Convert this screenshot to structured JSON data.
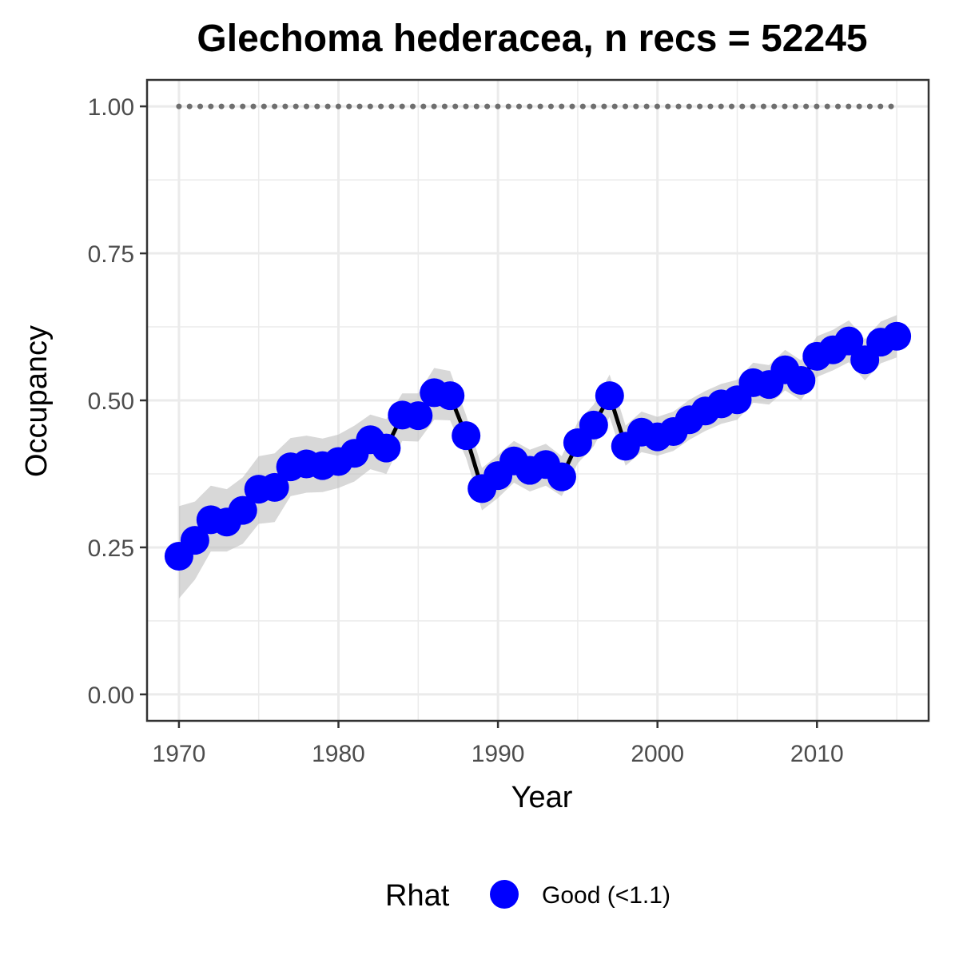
{
  "chart_data": {
    "type": "line",
    "title": "Glechoma hederacea, n recs = 52245",
    "xlabel": "Year",
    "ylabel": "Occupancy",
    "xlim": [
      1968,
      2017
    ],
    "ylim": [
      -0.045,
      1.045
    ],
    "x_ticks": [
      1970,
      1980,
      1990,
      2000,
      2010
    ],
    "x_tick_labels": [
      "1970",
      "1980",
      "1990",
      "2000",
      "2010"
    ],
    "x_minor_ticks": [
      1975,
      1985,
      1995,
      2005,
      2015
    ],
    "y_ticks": [
      0,
      0.25,
      0.5,
      0.75,
      1.0
    ],
    "y_tick_labels": [
      "0.00",
      "0.25",
      "0.50",
      "0.75",
      "1.00"
    ],
    "y_minor_ticks": [
      0.125,
      0.375,
      0.625,
      0.875
    ],
    "grid": true,
    "legend": {
      "title": "Rhat",
      "position": "bottom",
      "entries": [
        {
          "label": "Good (<1.1)",
          "color": "#0000ff"
        }
      ]
    },
    "colors": {
      "points": "#0000ff",
      "line": "#000000",
      "ribbon": "#bebebe",
      "reference": "#6e6e6e",
      "grid": "#ebebeb",
      "panel_border": "#333333",
      "tick_text": "#4d4d4d"
    },
    "reference_line": {
      "y": 1.0,
      "style": "dotted",
      "x": [
        1970,
        2015
      ]
    },
    "series": [
      {
        "x": [
          1970,
          1971,
          1972,
          1973,
          1974,
          1975,
          1976,
          1977,
          1978,
          1979,
          1980,
          1981,
          1982,
          1983,
          1984,
          1985,
          1986,
          1987,
          1988,
          1989,
          1990,
          1991,
          1992,
          1993,
          1994,
          1995,
          1996,
          1997,
          1998,
          1999,
          2000,
          2001,
          2002,
          2003,
          2004,
          2005,
          2006,
          2007,
          2008,
          2009,
          2010,
          2011,
          2012,
          2013,
          2014,
          2015
        ],
        "y": [
          0.235,
          0.262,
          0.297,
          0.293,
          0.313,
          0.349,
          0.352,
          0.387,
          0.392,
          0.389,
          0.396,
          0.41,
          0.433,
          0.419,
          0.475,
          0.474,
          0.513,
          0.508,
          0.44,
          0.35,
          0.372,
          0.397,
          0.381,
          0.391,
          0.37,
          0.428,
          0.458,
          0.508,
          0.422,
          0.446,
          0.438,
          0.447,
          0.467,
          0.482,
          0.494,
          0.501,
          0.53,
          0.527,
          0.552,
          0.534,
          0.575,
          0.586,
          0.601,
          0.569,
          0.599,
          0.609
        ],
        "lower": [
          0.163,
          0.195,
          0.243,
          0.243,
          0.256,
          0.29,
          0.293,
          0.337,
          0.343,
          0.344,
          0.351,
          0.362,
          0.383,
          0.375,
          0.431,
          0.43,
          0.467,
          0.466,
          0.402,
          0.313,
          0.334,
          0.36,
          0.345,
          0.355,
          0.337,
          0.393,
          0.422,
          0.472,
          0.389,
          0.412,
          0.406,
          0.414,
          0.433,
          0.448,
          0.46,
          0.467,
          0.496,
          0.493,
          0.517,
          0.5,
          0.54,
          0.551,
          0.565,
          0.534,
          0.563,
          0.573
        ],
        "upper": [
          0.32,
          0.328,
          0.355,
          0.349,
          0.369,
          0.405,
          0.41,
          0.436,
          0.44,
          0.435,
          0.442,
          0.457,
          0.476,
          0.468,
          0.512,
          0.512,
          0.555,
          0.55,
          0.475,
          0.385,
          0.407,
          0.431,
          0.416,
          0.426,
          0.405,
          0.463,
          0.493,
          0.544,
          0.457,
          0.481,
          0.472,
          0.481,
          0.501,
          0.516,
          0.528,
          0.535,
          0.564,
          0.56,
          0.586,
          0.568,
          0.609,
          0.62,
          0.636,
          0.604,
          0.634,
          0.645
        ]
      }
    ]
  }
}
